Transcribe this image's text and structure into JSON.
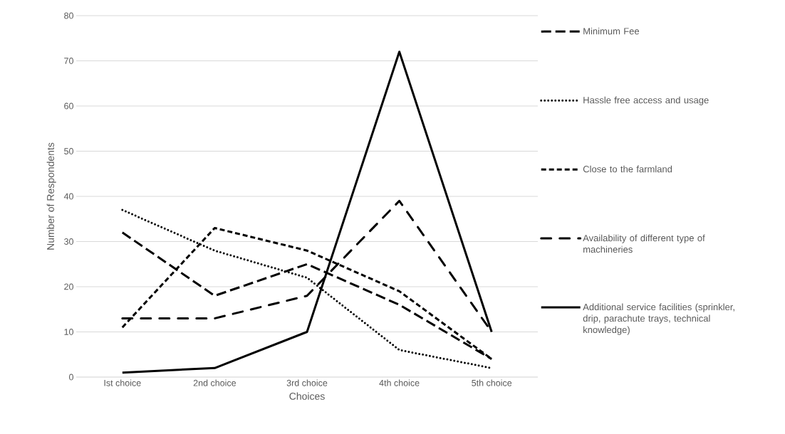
{
  "chart_data": {
    "type": "line",
    "xlabel": "Choices",
    "ylabel": "Number of Respondents",
    "categories": [
      "Ist choice",
      "2nd choice",
      "3rd choice",
      "4th choice",
      "5th choice"
    ],
    "series": [
      {
        "name": "Minimum Fee",
        "color": "#000000",
        "line_style": "longdash",
        "values": [
          32,
          18,
          25,
          16,
          4
        ]
      },
      {
        "name": "Hassle free access and usage",
        "color": "#000000",
        "line_style": "dotted",
        "values": [
          37,
          28,
          22,
          6,
          2
        ]
      },
      {
        "name": "Close to the farmland",
        "color": "#000000",
        "line_style": "dashed",
        "values": [
          11,
          33,
          28,
          19,
          4
        ]
      },
      {
        "name": "Availability of different type of machineries",
        "color": "#000000",
        "line_style": "dashdot",
        "values": [
          13,
          13,
          18,
          39,
          10
        ]
      },
      {
        "name": "Additional service facilities (sprinkler, drip, parachute trays, technical knowledge)",
        "color": "#000000",
        "line_style": "solid",
        "values": [
          1,
          2,
          10,
          72,
          10
        ]
      }
    ],
    "ylim": [
      0,
      80
    ],
    "yticks": [
      0,
      10,
      20,
      30,
      40,
      50,
      60,
      70,
      80
    ],
    "grid": "y",
    "legend": "right",
    "marker": "none"
  }
}
